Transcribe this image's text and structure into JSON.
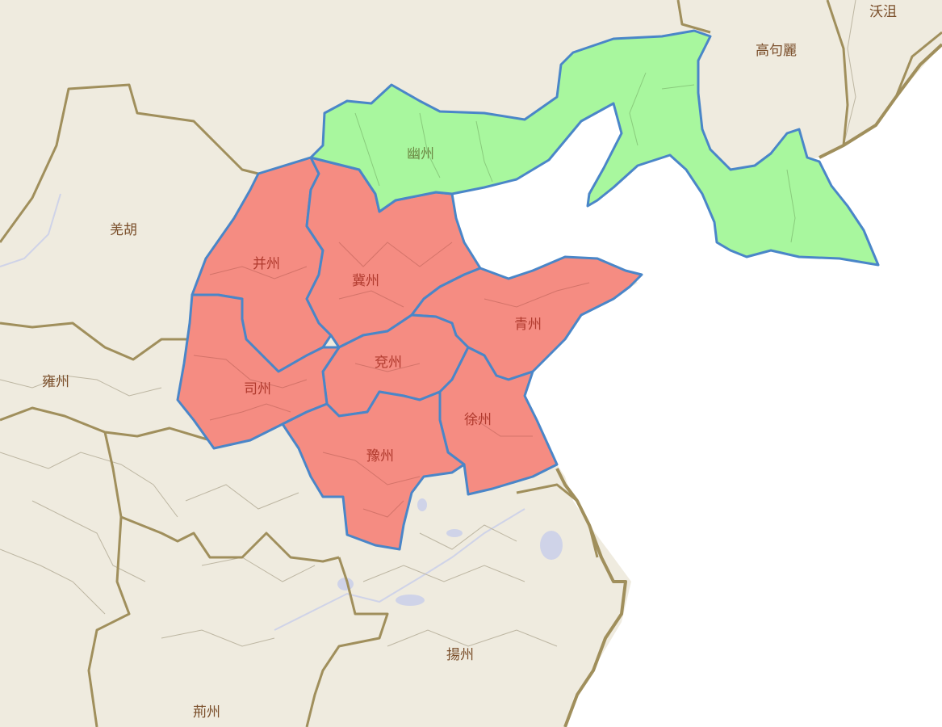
{
  "colors": {
    "land": "#efebdf",
    "sea": "#ffffff",
    "border": "#a08f5c",
    "subborder": "#bdb6a2",
    "lake": "#cfd3e8",
    "highlight_red": "#f58c82",
    "highlight_green": "#a8f79e",
    "highlight_stroke": "#4a86c8",
    "label_brown": "#7a4e2a",
    "label_red": "#b03a2e",
    "label_green": "#6d8a45"
  },
  "regions": {
    "highlighted_red": [
      "并州",
      "冀州",
      "青州",
      "兗州",
      "司州",
      "徐州",
      "豫州"
    ],
    "highlighted_green": [
      "幽州"
    ]
  },
  "labels": {
    "woju": "沃沮",
    "goguryeo": "高句麗",
    "youzhou": "幽州",
    "qianghu": "羌胡",
    "bingzhou": "并州",
    "jizhou": "冀州",
    "qingzhou": "青州",
    "yanzhou": "兗州",
    "yongzhou": "雍州",
    "sizhou": "司州",
    "xuzhou": "徐州",
    "yuzhou": "豫州",
    "yangzhou": "揚州",
    "jingzhou": "荊州"
  }
}
